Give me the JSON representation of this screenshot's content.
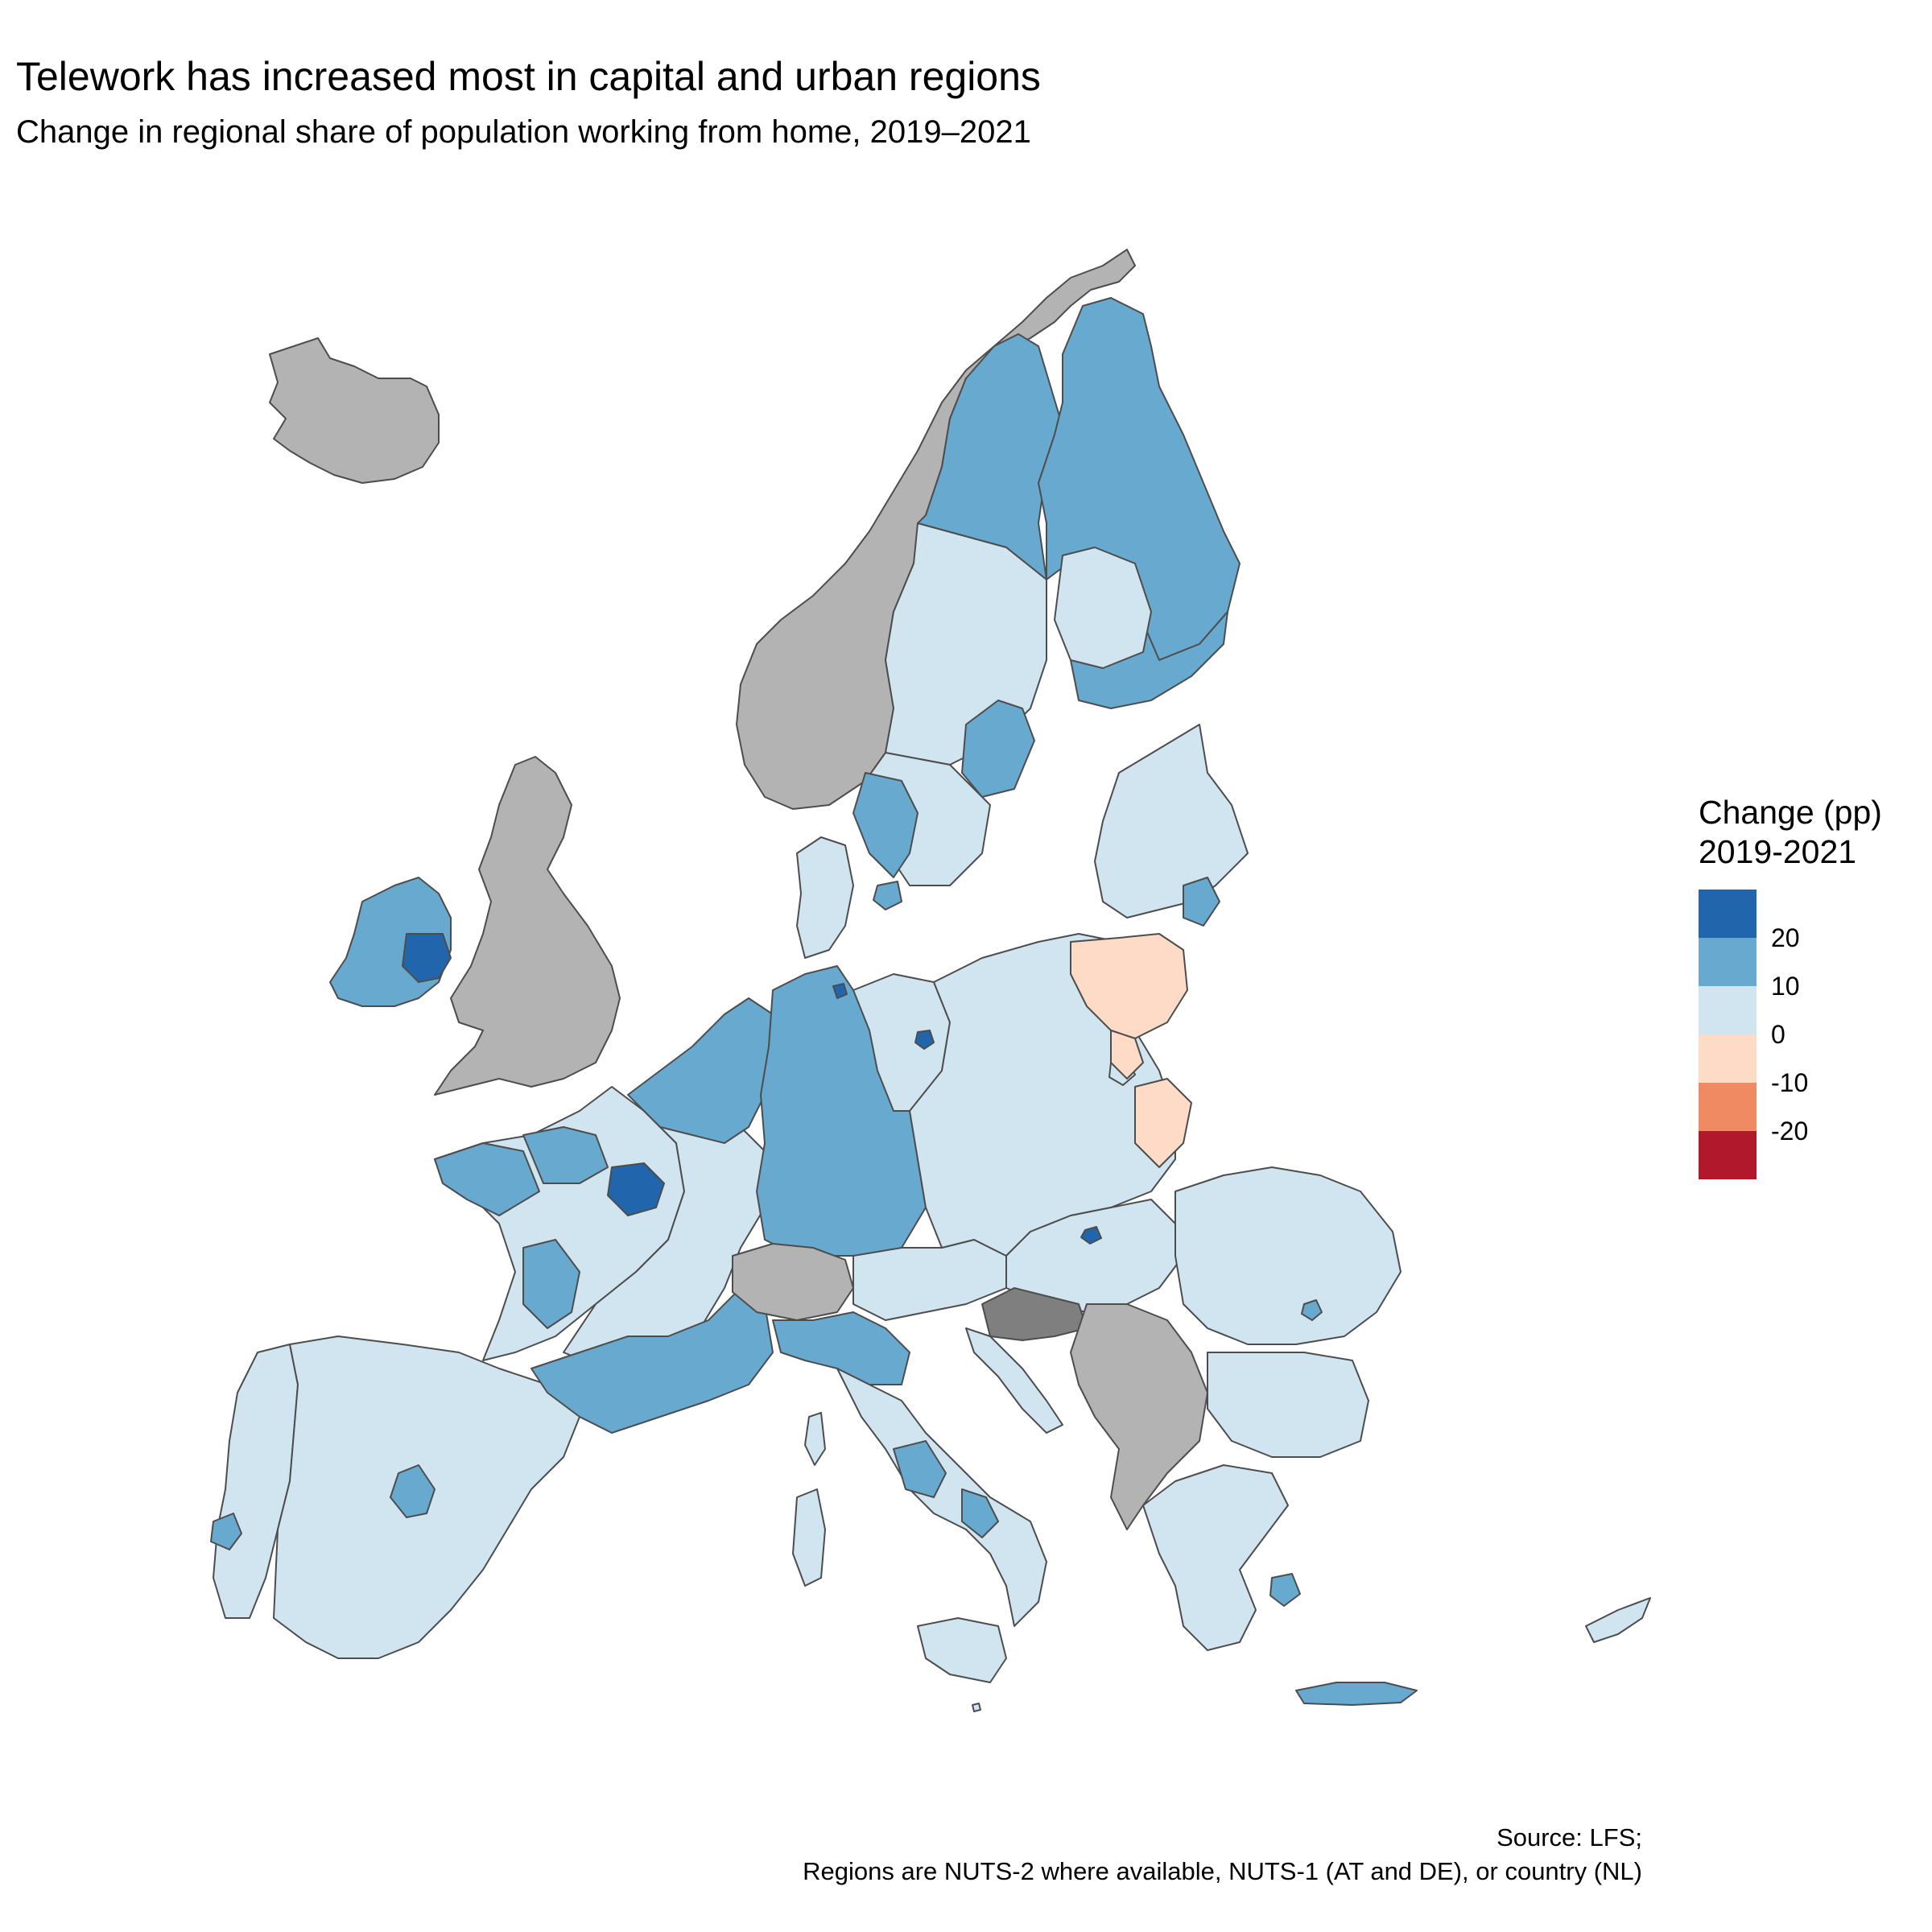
{
  "title": "Telework has increased most in capital and urban regions",
  "subtitle": "Change in regional share of population working from home, 2019–2021",
  "legend": {
    "title_line1": "Change (pp)",
    "title_line2": "2019-2021",
    "classes": [
      {
        "color": "#2166ac"
      },
      {
        "color": "#67a9cf"
      },
      {
        "color": "#d1e5f0"
      },
      {
        "color": "#fddbc7"
      },
      {
        "color": "#ef8a62"
      },
      {
        "color": "#b2182b"
      }
    ],
    "breaks": [
      "20",
      "10",
      "0",
      "-10",
      "-20"
    ]
  },
  "no_data_colors": {
    "not_covered": "#b3b3b3",
    "no_data": "#7f7f7f"
  },
  "source_line1": "Source: LFS;",
  "source_line2": "Regions are NUTS-2 where available, NUTS-1 (AT and DE), or country (NL)"
}
